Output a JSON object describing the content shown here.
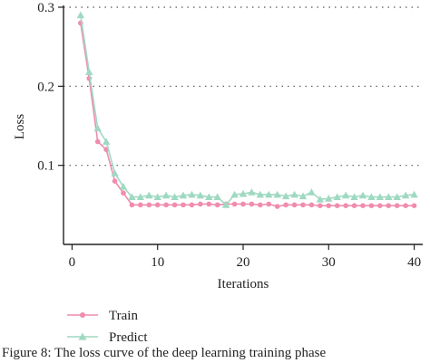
{
  "chart_data": {
    "type": "line",
    "title": "",
    "xlabel": "Iterations",
    "ylabel": "Loss",
    "xlim": [
      -1,
      41
    ],
    "ylim": [
      0,
      0.3
    ],
    "xticks": [
      0,
      10,
      20,
      30,
      40
    ],
    "xtick_labels": [
      "0",
      "10",
      "20",
      "30",
      "40"
    ],
    "yticks": [
      0.1,
      0.2,
      0.3
    ],
    "ytick_labels": [
      "0.1",
      "0.2",
      "0.3"
    ],
    "grid": "horizontal dotted",
    "legend_position": "bottom-left",
    "x": [
      1,
      2,
      3,
      4,
      5,
      6,
      7,
      8,
      9,
      10,
      11,
      12,
      13,
      14,
      15,
      16,
      17,
      18,
      19,
      20,
      21,
      22,
      23,
      24,
      25,
      26,
      27,
      28,
      29,
      30,
      31,
      32,
      33,
      34,
      35,
      36,
      37,
      38,
      39,
      40
    ],
    "series": [
      {
        "name": "Train",
        "color": "#f08cae",
        "marker": "circle",
        "values": [
          0.28,
          0.21,
          0.13,
          0.12,
          0.08,
          0.065,
          0.05,
          0.05,
          0.05,
          0.05,
          0.05,
          0.05,
          0.05,
          0.05,
          0.051,
          0.051,
          0.05,
          0.051,
          0.051,
          0.051,
          0.051,
          0.05,
          0.051,
          0.048,
          0.05,
          0.05,
          0.05,
          0.05,
          0.049,
          0.049,
          0.049,
          0.049,
          0.049,
          0.049,
          0.049,
          0.049,
          0.049,
          0.049,
          0.049,
          0.049
        ]
      },
      {
        "name": "Predict",
        "color": "#9fd9c2",
        "marker": "triangle",
        "values": [
          0.29,
          0.218,
          0.147,
          0.13,
          0.09,
          0.073,
          0.06,
          0.06,
          0.062,
          0.06,
          0.062,
          0.06,
          0.062,
          0.063,
          0.062,
          0.06,
          0.06,
          0.05,
          0.063,
          0.064,
          0.066,
          0.063,
          0.063,
          0.063,
          0.061,
          0.063,
          0.061,
          0.066,
          0.057,
          0.058,
          0.06,
          0.062,
          0.06,
          0.062,
          0.06,
          0.06,
          0.06,
          0.06,
          0.062,
          0.063
        ]
      }
    ]
  },
  "caption": "Figure 8: The loss curve of the deep learning training phase"
}
